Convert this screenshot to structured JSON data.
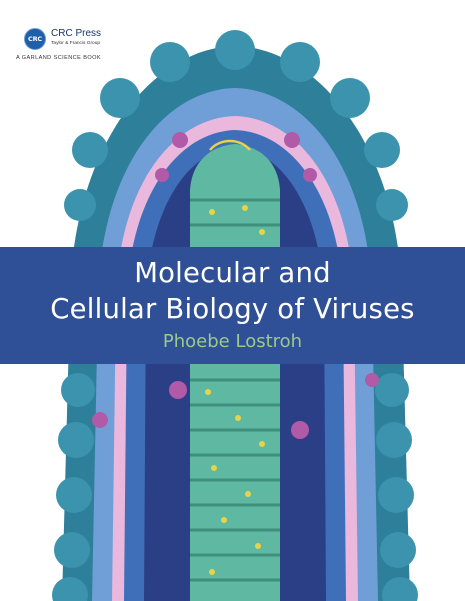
{
  "publisher": {
    "logo_text": "CRC",
    "name": "CRC Press",
    "group": "Taylor & Francis Group",
    "imprint": "A GARLAND SCIENCE BOOK"
  },
  "book": {
    "title_line1": "Molecular and",
    "title_line2": "Cellular Biology of Viruses",
    "author": "Phoebe Lostroh"
  },
  "colors": {
    "band": "#2f4f96",
    "title_text": "#ffffff",
    "author_text": "#9bc98c",
    "outer_knobs": "#2e7f9a",
    "spikes": "#6f9fd6",
    "membrane": "#e9b8dc",
    "inner_core": "#5fb8a2",
    "yellow_spots": "#e8d24a",
    "magenta_proteins": "#b05aa8"
  },
  "illustration": {
    "subject": "cutaway painting of a virus particle"
  }
}
